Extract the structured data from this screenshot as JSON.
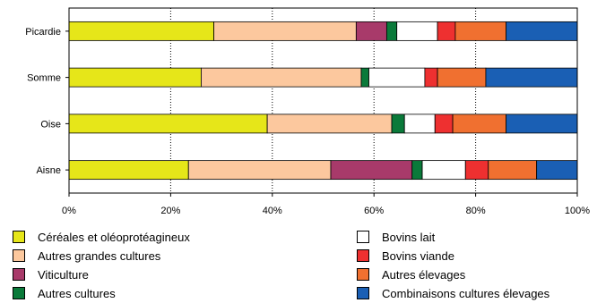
{
  "chart_data": {
    "type": "bar",
    "orientation": "horizontal",
    "stacked": true,
    "categories": [
      "Picardie",
      "Somme",
      "Oise",
      "Aisne"
    ],
    "xlim": [
      0,
      100
    ],
    "xticks": [
      "0%",
      "20%",
      "40%",
      "60%",
      "80%",
      "100%"
    ],
    "grid": "vertical-dotted",
    "legend_position": "bottom",
    "title": "",
    "xlabel": "",
    "ylabel": "",
    "series": [
      {
        "name": "Céréales et oléoprotéagineux",
        "color": "#e6e619",
        "values": [
          28.5,
          26,
          39,
          23.5
        ]
      },
      {
        "name": "Autres grandes cultures",
        "color": "#fcc89e",
        "values": [
          28,
          31.5,
          24.5,
          28
        ]
      },
      {
        "name": "Viticulture",
        "color": "#a83a6a",
        "values": [
          6,
          0,
          0,
          16
        ]
      },
      {
        "name": "Autres cultures",
        "color": "#0a7a3a",
        "values": [
          2,
          1.5,
          2.5,
          2
        ]
      },
      {
        "name": "Bovins lait",
        "color": "#ffffff",
        "values": [
          8,
          11,
          6,
          8.5
        ]
      },
      {
        "name": "Bovins viande",
        "color": "#ee3030",
        "values": [
          3.5,
          2.5,
          3.5,
          4.5
        ]
      },
      {
        "name": "Autres élevages",
        "color": "#f07030",
        "values": [
          10,
          9.5,
          10.5,
          9.5
        ]
      },
      {
        "name": "Combinaisons cultures élevages",
        "color": "#1a5fb4",
        "values": [
          14,
          18,
          14,
          8
        ]
      }
    ]
  }
}
